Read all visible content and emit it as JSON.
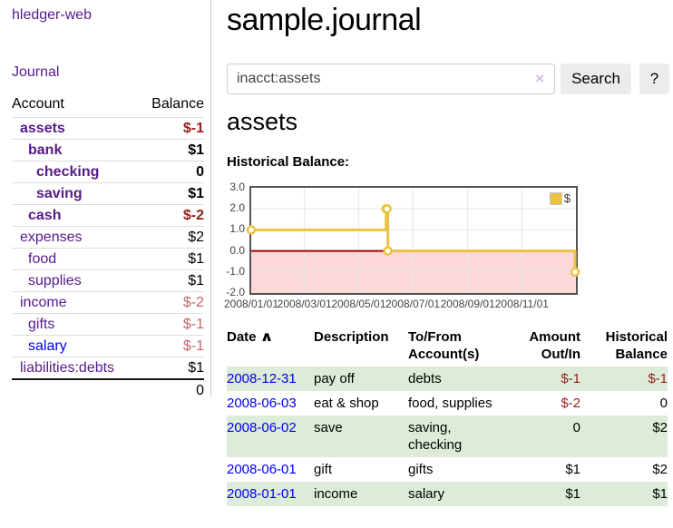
{
  "sidebar": {
    "app_title": "hledger-web",
    "journal_link": "Journal",
    "accounts": {
      "header_account": "Account",
      "header_balance": "Balance",
      "rows": [
        {
          "name": "assets",
          "depth": 0,
          "bold": true,
          "balance": "$-1"
        },
        {
          "name": "bank",
          "depth": 1,
          "bold": true,
          "balance": "$1"
        },
        {
          "name": "checking",
          "depth": 2,
          "bold": true,
          "balance": "0"
        },
        {
          "name": "saving",
          "depth": 2,
          "bold": true,
          "balance": "$1"
        },
        {
          "name": "cash",
          "depth": 1,
          "bold": true,
          "balance": "$-2"
        },
        {
          "name": "expenses",
          "depth": 0,
          "bold": false,
          "balance": "$2"
        },
        {
          "name": "food",
          "depth": 1,
          "bold": false,
          "balance": "$1"
        },
        {
          "name": "supplies",
          "depth": 1,
          "bold": false,
          "balance": "$1"
        },
        {
          "name": "income",
          "depth": 0,
          "bold": false,
          "balance": "$-2"
        },
        {
          "name": "gifts",
          "depth": 1,
          "bold": false,
          "balance": "$-1"
        },
        {
          "name": "salary",
          "depth": 1,
          "bold": false,
          "balance": "$-1",
          "blue": true
        },
        {
          "name": "liabilities:debts",
          "depth": 0,
          "bold": false,
          "balance": "$1"
        }
      ],
      "total": "0"
    }
  },
  "main": {
    "title": "sample.journal",
    "search": {
      "query": "inacct:assets",
      "clear_icon": "×",
      "button_label": "Search",
      "help_label": "?"
    },
    "account_heading": "assets",
    "chart_label": "Historical Balance:"
  },
  "chart_data": {
    "type": "line",
    "title": "Historical Balance",
    "legend_position": "top-right",
    "grid": true,
    "series": [
      {
        "name": "$",
        "color": "#edc240",
        "step": true,
        "points": [
          [
            "2008-01-01",
            1
          ],
          [
            "2008-06-01",
            2
          ],
          [
            "2008-06-02",
            2
          ],
          [
            "2008-06-03",
            0
          ],
          [
            "2008-12-31",
            -1
          ]
        ]
      }
    ],
    "x_range": [
      "2008-01-01",
      "2009-01-01"
    ],
    "ylim": [
      -2,
      3
    ],
    "y_ticks": [
      "3.0",
      "2.0",
      "1.0",
      "0.0",
      "-1.0",
      "-2.0"
    ],
    "x_ticks": [
      {
        "date": "2008-01-01",
        "label": "2008/01/01"
      },
      {
        "date": "2008-03-01",
        "label": "2008/03/01"
      },
      {
        "date": "2008-05-01",
        "label": "2008/05/01"
      },
      {
        "date": "2008-07-01",
        "label": "2008/07/01"
      },
      {
        "date": "2008-09-01",
        "label": "2008/09/01"
      },
      {
        "date": "2008-11-01",
        "label": "2008/11/01"
      }
    ],
    "colors": {
      "negative_region": "#fbd9d9",
      "zero_line": "#a40000",
      "grid": "#e6e6e6",
      "border": "#545454"
    }
  },
  "transactions": {
    "headers": {
      "date": "Date",
      "sort_indicator": "∧",
      "description": "Description",
      "accounts": "To/From Account(s)",
      "amount": "Amount Out/In",
      "balance": "Historical Balance"
    },
    "rows": [
      {
        "date": "2008-12-31",
        "description": "pay off",
        "accounts": "debts",
        "amount": "$-1",
        "balance": "$-1"
      },
      {
        "date": "2008-06-03",
        "description": "eat & shop",
        "accounts": "food, supplies",
        "amount": "$-2",
        "balance": "0"
      },
      {
        "date": "2008-06-02",
        "description": "save",
        "accounts": "saving, checking",
        "amount": "0",
        "balance": "$2"
      },
      {
        "date": "2008-06-01",
        "description": "gift",
        "accounts": "gifts",
        "amount": "$1",
        "balance": "$2"
      },
      {
        "date": "2008-01-01",
        "description": "income",
        "accounts": "salary",
        "amount": "$1",
        "balance": "$1"
      }
    ]
  }
}
